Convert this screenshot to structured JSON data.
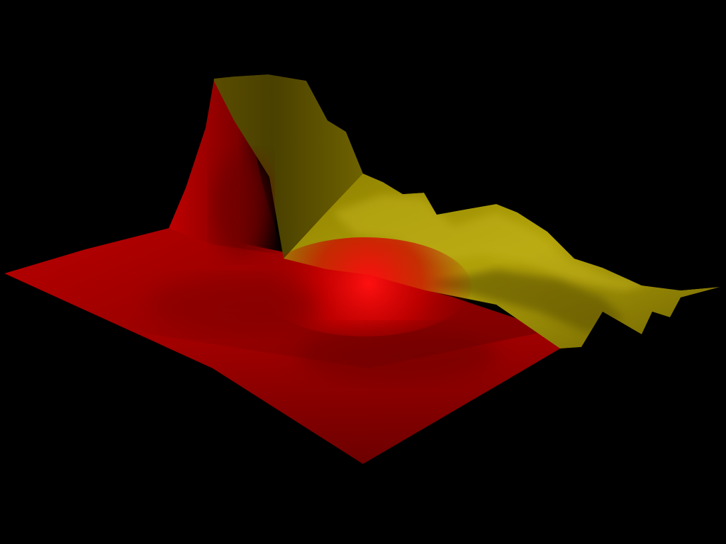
{
  "scene": {
    "background_color": "#000000",
    "surface_low_color": "#c40000",
    "surface_high_color": "#d8c81a",
    "shading": "smooth-lit"
  }
}
